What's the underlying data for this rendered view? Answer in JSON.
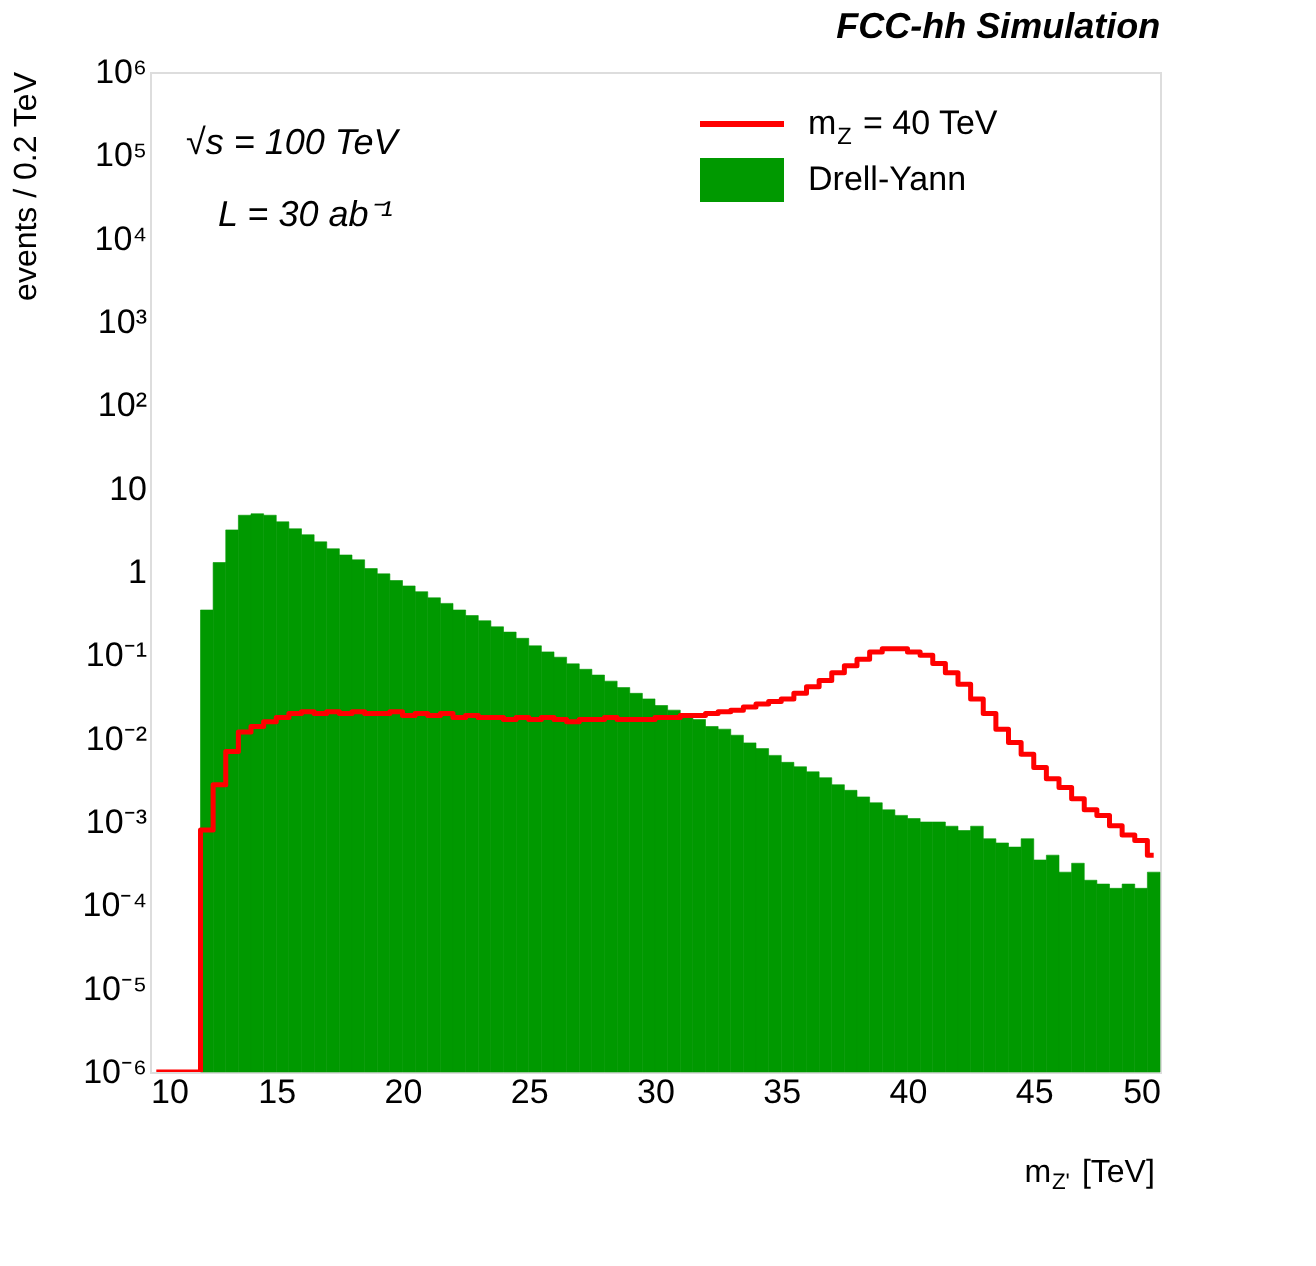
{
  "chart_data": {
    "type": "histogram",
    "title": "FCC-hh Simulation",
    "xlabel": "m$_{Z'}$ [TeV]",
    "ylabel": "events / 0.2 TeV",
    "annotations": [
      "√s = 100 TeV",
      "L = 30 ab⁻¹"
    ],
    "log": "y",
    "legend": "top right",
    "grid": false,
    "xlim": [
      10,
      50
    ],
    "xticks": [
      10,
      15,
      20,
      25,
      30,
      35,
      40,
      45,
      50
    ],
    "ylim": [
      1e-06,
      1000000
    ],
    "yticks": [
      {
        "value": 1000000,
        "label": "10⁶"
      },
      {
        "value": 100000,
        "label": "10⁵"
      },
      {
        "value": 10000,
        "label": "10⁴"
      },
      {
        "value": 1000,
        "label": "10³"
      },
      {
        "value": 100,
        "label": "10²"
      },
      {
        "value": 10,
        "label": "10"
      },
      {
        "value": 1,
        "label": "1"
      },
      {
        "value": 0.1,
        "label": "10⁻¹"
      },
      {
        "value": 0.01,
        "label": "10⁻²"
      },
      {
        "value": 0.001,
        "label": "10⁻³"
      },
      {
        "value": 0.0001,
        "label": "10⁻⁴"
      },
      {
        "value": 1e-05,
        "label": "10⁻⁵"
      },
      {
        "value": 1e-06,
        "label": "10⁻⁶"
      }
    ],
    "series": [
      {
        "name": "m$_{Z}$ = 40 TeV",
        "type": "step",
        "color": "#ff0000",
        "x": [
          10.25,
          10.75,
          11.25,
          11.75,
          12.25,
          12.75,
          13.25,
          13.75,
          14.25,
          14.75,
          15.25,
          15.75,
          16.25,
          16.75,
          17.25,
          17.75,
          18.25,
          18.75,
          19.25,
          19.75,
          20.25,
          20.75,
          21.25,
          21.75,
          22.25,
          22.75,
          23.25,
          23.75,
          24.25,
          24.75,
          25.25,
          25.75,
          26.25,
          26.75,
          27.25,
          27.75,
          28.25,
          28.75,
          29.25,
          29.75,
          30.25,
          30.75,
          31.25,
          31.75,
          32.25,
          32.75,
          33.25,
          33.75,
          34.25,
          34.75,
          35.25,
          35.75,
          36.25,
          36.75,
          37.25,
          37.75,
          38.25,
          38.75,
          39.25,
          39.75,
          40.25,
          40.75,
          41.25,
          41.75,
          42.25,
          42.75,
          43.25,
          43.75,
          44.25,
          44.75,
          45.25,
          45.75,
          46.25,
          46.75,
          47.25,
          47.75,
          48.25,
          48.75,
          49.25,
          49.75
        ],
        "values": [
          1e-06,
          1e-06,
          1e-06,
          1e-06,
          0.0008,
          0.0028,
          0.007,
          0.012,
          0.014,
          0.016,
          0.018,
          0.02,
          0.021,
          0.02,
          0.021,
          0.02,
          0.021,
          0.02,
          0.02,
          0.021,
          0.019,
          0.02,
          0.019,
          0.02,
          0.018,
          0.019,
          0.018,
          0.018,
          0.017,
          0.018,
          0.017,
          0.018,
          0.017,
          0.016,
          0.017,
          0.017,
          0.018,
          0.017,
          0.017,
          0.017,
          0.018,
          0.018,
          0.019,
          0.019,
          0.02,
          0.021,
          0.022,
          0.024,
          0.026,
          0.028,
          0.03,
          0.035,
          0.042,
          0.05,
          0.062,
          0.075,
          0.09,
          0.11,
          0.12,
          0.12,
          0.11,
          0.1,
          0.08,
          0.062,
          0.045,
          0.03,
          0.02,
          0.013,
          0.009,
          0.0065,
          0.0045,
          0.0033,
          0.0026,
          0.0019,
          0.0014,
          0.0012,
          0.0009,
          0.0007,
          0.0006,
          0.0004
        ]
      },
      {
        "name": "Drell-Yann",
        "type": "histogram",
        "color": "#009900",
        "bins": [
          12,
          12.5,
          13,
          13.5,
          14,
          14.5,
          15,
          15.5,
          16,
          16.5,
          17,
          17.5,
          18,
          18.5,
          19,
          19.5,
          20,
          20.5,
          21,
          21.5,
          22,
          22.5,
          23,
          23.5,
          24,
          24.5,
          25,
          25.5,
          26,
          26.5,
          27,
          27.5,
          28,
          28.5,
          29,
          29.5,
          30,
          30.5,
          31,
          31.5,
          32,
          32.5,
          33,
          33.5,
          34,
          34.5,
          35,
          35.5,
          36,
          36.5,
          37,
          37.5,
          38,
          38.5,
          39,
          39.5,
          40,
          40.5,
          41,
          41.5,
          42,
          42.5,
          43,
          43.5,
          44,
          44.5,
          45,
          45.5,
          46,
          46.5,
          47,
          47.5,
          48,
          48.5,
          49,
          49.5,
          50
        ],
        "values": [
          0.35,
          1.3,
          3.2,
          4.8,
          5.0,
          4.8,
          4.0,
          3.3,
          2.8,
          2.3,
          1.9,
          1.6,
          1.4,
          1.1,
          0.95,
          0.79,
          0.68,
          0.58,
          0.49,
          0.42,
          0.35,
          0.3,
          0.26,
          0.22,
          0.19,
          0.16,
          0.13,
          0.11,
          0.095,
          0.079,
          0.068,
          0.058,
          0.049,
          0.041,
          0.035,
          0.03,
          0.025,
          0.022,
          0.019,
          0.017,
          0.014,
          0.013,
          0.011,
          0.0089,
          0.0076,
          0.0063,
          0.0052,
          0.0046,
          0.004,
          0.0034,
          0.0028,
          0.0024,
          0.002,
          0.0017,
          0.0014,
          0.0012,
          0.0011,
          0.001,
          0.001,
          0.00089,
          0.00079,
          0.00089,
          0.00063,
          0.00056,
          0.0005,
          0.00063,
          0.00035,
          0.0004,
          0.00025,
          0.00032,
          0.0002,
          0.00018,
          0.00016,
          0.00018,
          0.00016,
          0.00025
        ]
      }
    ]
  }
}
